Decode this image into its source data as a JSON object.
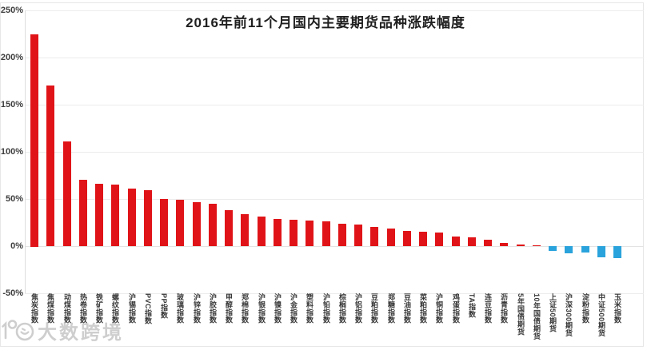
{
  "chart_data": {
    "type": "bar",
    "title": "2016年前11个月国内主要期货品种涨跌幅度",
    "unit": "%",
    "ylim": [
      -50,
      250
    ],
    "yticks": [
      250,
      200,
      150,
      100,
      50,
      0,
      -50
    ],
    "ytick_labels": [
      "250%",
      "200%",
      "150%",
      "100%",
      "50%",
      "0%",
      "-50%"
    ],
    "grid": true,
    "legend": "none",
    "positive_color": "#e01418",
    "negative_color": "#2aa3dc",
    "categories": [
      "焦炭指数",
      "焦煤指数",
      "动煤指数",
      "热卷指数",
      "铁矿指数",
      "螺纹指数",
      "沪锡指数",
      "PVC指数",
      "PP指数",
      "玻璃指数",
      "沪锌指数",
      "沪胶指数",
      "甲醇指数",
      "郑棉指数",
      "沪银指数",
      "沪镍指数",
      "沪金指数",
      "塑料指数",
      "沪铅指数",
      "棕榈指数",
      "沪铝指数",
      "豆粕指数",
      "郑糖指数",
      "豆油指数",
      "菜粕指数",
      "沪铜指数",
      "鸡蛋指数",
      "TA指数",
      "连豆指数",
      "沥青指数",
      "5年国债期货",
      "10年国债期货",
      "上证50期货",
      "沪深300期货",
      "淀粉指数",
      "中证500期货",
      "玉米指数"
    ],
    "values": [
      225,
      170,
      111,
      70,
      66,
      65,
      61,
      59,
      50,
      49,
      47,
      45,
      38,
      34,
      31,
      29,
      28,
      27,
      26,
      24,
      23,
      20,
      19,
      16,
      15,
      14,
      10,
      9,
      7,
      3,
      1.5,
      0.5,
      -5,
      -8,
      -7,
      -12,
      -13
    ]
  },
  "watermark": {
    "text": "大数跨境",
    "logo_icon": "smiley-100-logo"
  }
}
